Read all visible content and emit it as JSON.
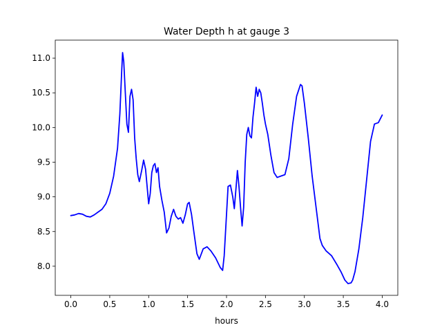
{
  "chart_data": {
    "type": "line",
    "title": "Water Depth h at gauge 3",
    "xlabel": "hours",
    "ylabel": "",
    "xlim": [
      -0.2,
      4.2
    ],
    "ylim": [
      7.58,
      11.26
    ],
    "xticks": [
      0.0,
      0.5,
      1.0,
      1.5,
      2.0,
      2.5,
      3.0,
      3.5,
      4.0
    ],
    "xtick_labels": [
      "0.0",
      "0.5",
      "1.0",
      "1.5",
      "2.0",
      "2.5",
      "3.0",
      "3.5",
      "4.0"
    ],
    "yticks": [
      8.0,
      8.5,
      9.0,
      9.5,
      10.0,
      10.5,
      11.0
    ],
    "ytick_labels": [
      "8.0",
      "8.5",
      "9.0",
      "9.5",
      "10.0",
      "10.5",
      "11.0"
    ],
    "grid": false,
    "legend": "none",
    "series": [
      {
        "color": "#0000ff",
        "x": [
          0.0,
          0.05,
          0.1,
          0.15,
          0.2,
          0.25,
          0.3,
          0.35,
          0.4,
          0.45,
          0.5,
          0.55,
          0.6,
          0.63,
          0.655,
          0.665,
          0.68,
          0.7,
          0.72,
          0.74,
          0.76,
          0.78,
          0.8,
          0.82,
          0.84,
          0.86,
          0.88,
          0.91,
          0.935,
          0.96,
          0.98,
          1.0,
          1.02,
          1.04,
          1.06,
          1.08,
          1.1,
          1.12,
          1.14,
          1.17,
          1.2,
          1.23,
          1.26,
          1.29,
          1.32,
          1.35,
          1.38,
          1.41,
          1.44,
          1.47,
          1.5,
          1.52,
          1.55,
          1.58,
          1.62,
          1.65,
          1.7,
          1.75,
          1.8,
          1.86,
          1.92,
          1.95,
          1.97,
          1.995,
          2.02,
          2.05,
          2.08,
          2.1,
          2.12,
          2.14,
          2.16,
          2.18,
          2.2,
          2.22,
          2.24,
          2.26,
          2.28,
          2.3,
          2.32,
          2.34,
          2.36,
          2.38,
          2.4,
          2.42,
          2.44,
          2.46,
          2.48,
          2.5,
          2.53,
          2.57,
          2.61,
          2.65,
          2.7,
          2.75,
          2.8,
          2.85,
          2.9,
          2.95,
          2.97,
          3.0,
          3.05,
          3.1,
          3.15,
          3.2,
          3.23,
          3.28,
          3.35,
          3.42,
          3.47,
          3.52,
          3.56,
          3.6,
          3.62,
          3.65,
          3.7,
          3.75,
          3.8,
          3.85,
          3.9,
          3.95,
          4.0
        ],
        "y": [
          8.73,
          8.74,
          8.76,
          8.75,
          8.72,
          8.71,
          8.74,
          8.78,
          8.82,
          8.9,
          9.05,
          9.3,
          9.7,
          10.2,
          10.85,
          11.08,
          10.95,
          10.5,
          10.05,
          9.93,
          10.45,
          10.55,
          10.4,
          9.85,
          9.55,
          9.32,
          9.22,
          9.38,
          9.53,
          9.4,
          9.15,
          8.9,
          9.05,
          9.35,
          9.45,
          9.48,
          9.35,
          9.42,
          9.15,
          8.95,
          8.78,
          8.48,
          8.55,
          8.72,
          8.82,
          8.72,
          8.68,
          8.7,
          8.62,
          8.74,
          8.9,
          8.92,
          8.75,
          8.5,
          8.18,
          8.1,
          8.25,
          8.28,
          8.22,
          8.12,
          7.98,
          7.94,
          8.15,
          8.65,
          9.15,
          9.17,
          9.0,
          8.83,
          9.1,
          9.38,
          9.15,
          8.85,
          8.58,
          8.85,
          9.5,
          9.9,
          10.0,
          9.88,
          9.85,
          10.15,
          10.35,
          10.58,
          10.45,
          10.55,
          10.5,
          10.35,
          10.18,
          10.05,
          9.9,
          9.6,
          9.35,
          9.28,
          9.3,
          9.32,
          9.55,
          10.05,
          10.45,
          10.62,
          10.6,
          10.35,
          9.85,
          9.3,
          8.85,
          8.4,
          8.3,
          8.22,
          8.15,
          8.02,
          7.92,
          7.8,
          7.75,
          7.76,
          7.8,
          7.92,
          8.25,
          8.7,
          9.25,
          9.8,
          10.05,
          10.07,
          10.18
        ]
      }
    ]
  }
}
